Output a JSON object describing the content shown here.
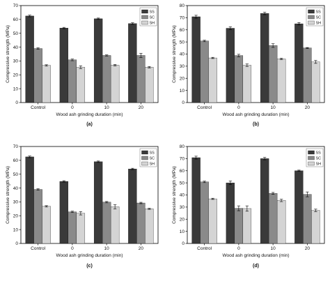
{
  "figure": {
    "colors": {
      "SS": "#3a3a3a",
      "SC": "#8a8a8a",
      "SH": "#d4d4d4"
    }
  },
  "chart_data": [
    {
      "type": "bar",
      "caption": "(a)",
      "categories": [
        "Control",
        "0",
        "10",
        "20"
      ],
      "series": [
        {
          "name": "SS",
          "values": [
            62.5,
            53.8,
            60.5,
            57.0
          ],
          "errors": [
            0.6,
            0.5,
            0.5,
            0.6
          ]
        },
        {
          "name": "SC",
          "values": [
            39.0,
            30.8,
            34.0,
            34.0
          ],
          "errors": [
            0.5,
            0.6,
            0.4,
            1.5
          ]
        },
        {
          "name": "SH",
          "values": [
            26.8,
            25.5,
            27.0,
            25.5
          ],
          "errors": [
            0.5,
            1.0,
            0.5,
            0.5
          ]
        }
      ],
      "xlabel": "Wood ash grinding duration (min)",
      "ylabel": "Compressive strength (MPa)",
      "ylim": [
        0,
        70
      ],
      "yticks": [
        "0",
        "10",
        "20",
        "30",
        "40",
        "50",
        "60",
        "70"
      ],
      "legend": "top-right",
      "grid": false
    },
    {
      "type": "bar",
      "caption": "(b)",
      "categories": [
        "Control",
        "0",
        "10",
        "20"
      ],
      "series": [
        {
          "name": "SS",
          "values": [
            70.8,
            61.3,
            73.5,
            65.0
          ],
          "errors": [
            1.2,
            1.2,
            1.0,
            1.0
          ]
        },
        {
          "name": "SC",
          "values": [
            50.8,
            38.8,
            47.0,
            45.0
          ],
          "errors": [
            0.6,
            1.0,
            1.5,
            0.4
          ]
        },
        {
          "name": "SH",
          "values": [
            36.8,
            30.8,
            36.0,
            33.5
          ],
          "errors": [
            0.5,
            1.0,
            0.6,
            1.2
          ]
        }
      ],
      "xlabel": "Wood ash grinding duration (min)",
      "ylabel": "Compressive strength (MPa)",
      "ylim": [
        0,
        80
      ],
      "yticks": [
        "0",
        "10",
        "20",
        "30",
        "40",
        "50",
        "60",
        "70",
        "80"
      ],
      "legend": "top-right",
      "grid": false
    },
    {
      "type": "bar",
      "caption": "(c)",
      "categories": [
        "Control",
        "0",
        "10",
        "20"
      ],
      "series": [
        {
          "name": "SS",
          "values": [
            62.5,
            44.8,
            59.0,
            53.8
          ],
          "errors": [
            0.6,
            0.5,
            0.5,
            0.5
          ]
        },
        {
          "name": "SC",
          "values": [
            39.0,
            22.8,
            29.8,
            29.2
          ],
          "errors": [
            0.5,
            0.5,
            0.5,
            0.5
          ]
        },
        {
          "name": "SH",
          "values": [
            26.8,
            21.8,
            26.5,
            25.0
          ],
          "errors": [
            0.5,
            1.2,
            1.5,
            0.4
          ]
        }
      ],
      "xlabel": "Wood ash grinding duration (min)",
      "ylabel": "Compressive strength (MPa)",
      "ylim": [
        0,
        70
      ],
      "yticks": [
        "0",
        "10",
        "20",
        "30",
        "40",
        "50",
        "60",
        "70"
      ],
      "legend": "top-right",
      "grid": false
    },
    {
      "type": "bar",
      "caption": "(d)",
      "categories": [
        "Control",
        "0",
        "10",
        "20"
      ],
      "series": [
        {
          "name": "SS",
          "values": [
            70.8,
            50.0,
            70.0,
            60.0
          ],
          "errors": [
            1.2,
            1.5,
            1.0,
            0.5
          ]
        },
        {
          "name": "SC",
          "values": [
            50.8,
            29.0,
            41.3,
            40.5
          ],
          "errors": [
            0.6,
            2.0,
            0.8,
            2.0
          ]
        },
        {
          "name": "SH",
          "values": [
            36.8,
            28.8,
            35.5,
            27.3
          ],
          "errors": [
            0.5,
            2.2,
            1.0,
            1.0
          ]
        }
      ],
      "xlabel": "Wood ash grinding duration (min)",
      "ylabel": "Compressive strength (MPa)",
      "ylim": [
        0,
        80
      ],
      "yticks": [
        "0",
        "10",
        "20",
        "30",
        "40",
        "50",
        "60",
        "70",
        "80"
      ],
      "legend": "top-right",
      "grid": false
    }
  ]
}
